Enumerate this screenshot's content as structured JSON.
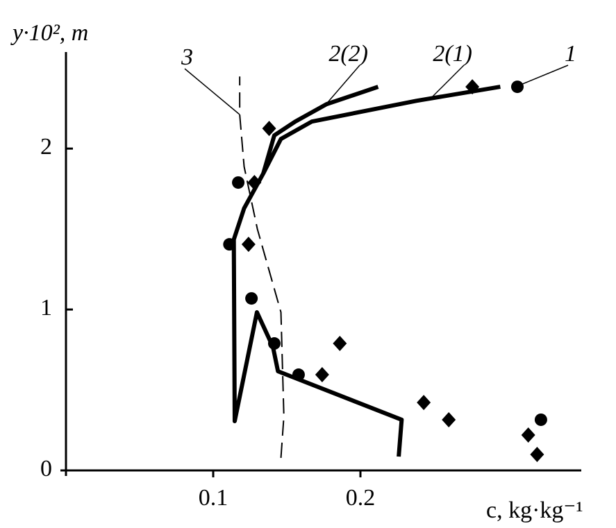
{
  "chart_data": {
    "type": "scatter",
    "xlabel": "c, kg·kg⁻¹",
    "ylabel": "y·10², m",
    "xlim": [
      0,
      0.35
    ],
    "ylim": [
      0,
      2.6
    ],
    "xticks": [
      0.1,
      0.2
    ],
    "yticks": [
      0,
      1,
      2
    ],
    "color": "#000000",
    "series": [
      {
        "name": "1",
        "marker": "circle",
        "x": [
          0.3066,
          0.117,
          0.111,
          0.126,
          0.1415,
          0.158,
          0.3226
        ],
        "y": [
          2.384,
          1.789,
          1.405,
          1.069,
          0.789,
          0.595,
          0.315
        ]
      },
      {
        "marker": "diamond",
        "x": [
          0.276,
          0.138,
          0.128,
          0.124,
          0.186,
          0.174,
          0.243,
          0.26,
          0.314,
          0.32
        ],
        "y": [
          2.384,
          2.125,
          1.789,
          1.405,
          0.789,
          0.595,
          0.422,
          0.315,
          0.22,
          0.099
        ]
      },
      {
        "name": "2(1)",
        "line": "solid",
        "x": [
          0.226,
          0.228,
          0.144,
          0.1406,
          0.1297,
          0.1146,
          0.114,
          0.121,
          0.134,
          0.146,
          0.167,
          0.238,
          0.295
        ],
        "y": [
          0.086,
          0.315,
          0.616,
          0.767,
          0.983,
          0.306,
          1.435,
          1.629,
          1.845,
          2.06,
          2.168,
          2.297,
          2.384
        ]
      },
      {
        "name": "2(2)",
        "line": "solid",
        "x": [
          0.134,
          0.1415,
          0.1557,
          0.177,
          0.212
        ],
        "y": [
          1.845,
          2.082,
          2.168,
          2.276,
          2.384
        ]
      },
      {
        "name": "3",
        "line": "dashed",
        "x": [
          0.146,
          0.148,
          0.146,
          0.13,
          0.121,
          0.118,
          0.118
        ],
        "y": [
          0.078,
          0.336,
          0.983,
          1.5,
          1.888,
          2.211,
          2.448
        ]
      }
    ]
  }
}
